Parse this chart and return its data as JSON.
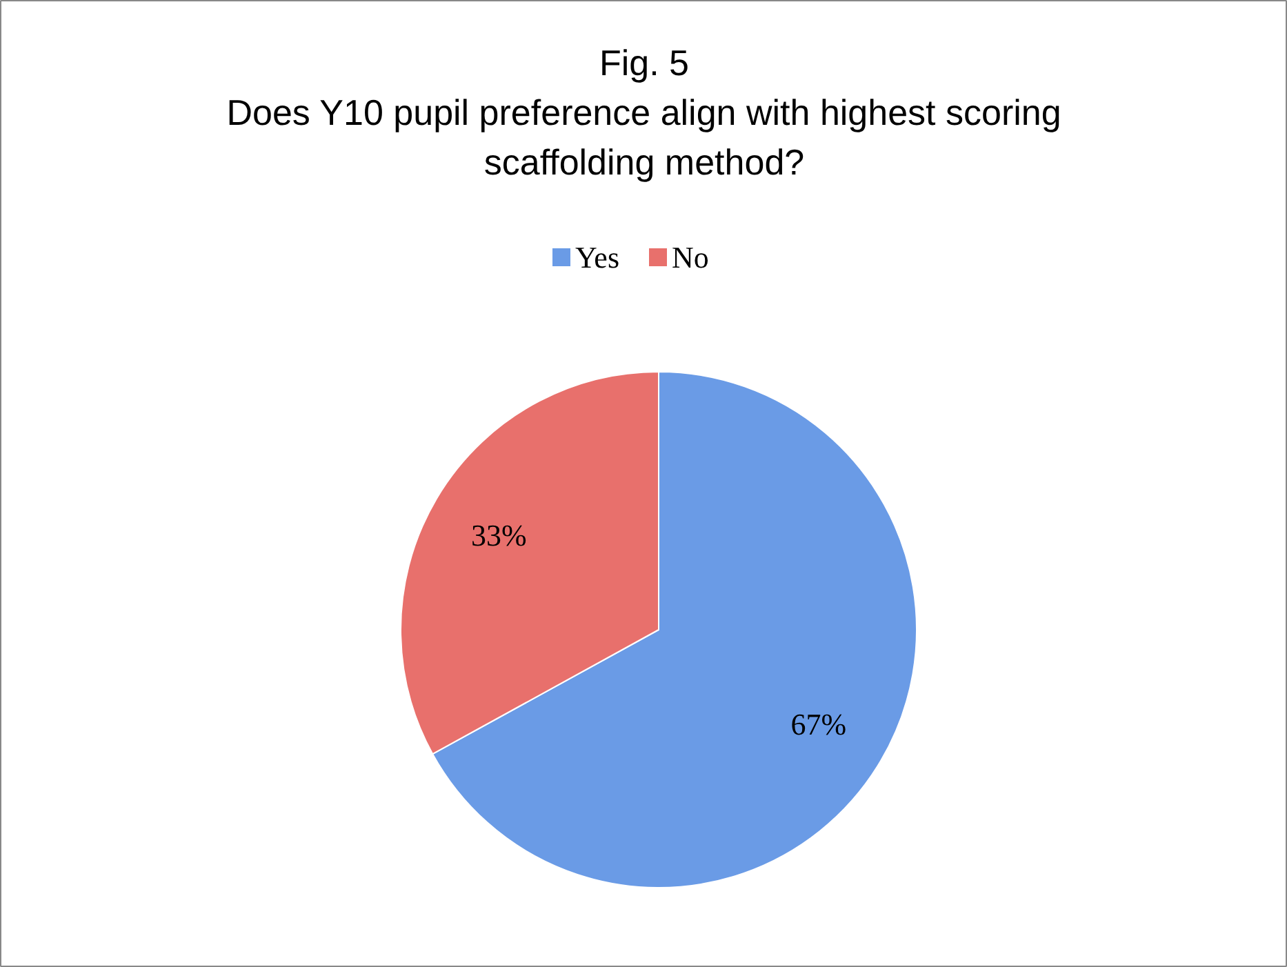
{
  "chart_data": {
    "type": "pie",
    "title": "Fig. 5\nDoes Y10 pupil preference align with highest scoring\nscaffolding method?",
    "categories": [
      "Yes",
      "No"
    ],
    "values": [
      67,
      33
    ],
    "colors": [
      "#6a9be6",
      "#e8706c"
    ],
    "value_labels": [
      "67%",
      "33%"
    ],
    "legend": "top"
  }
}
